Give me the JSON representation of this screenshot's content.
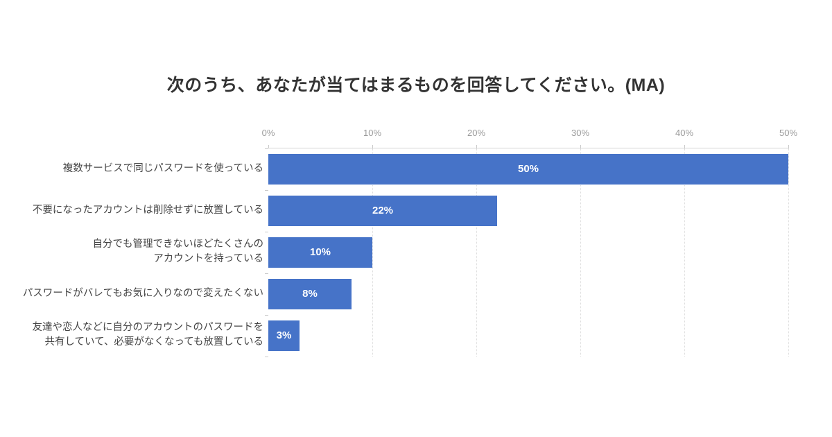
{
  "title": "次のうち、あなたが当てはまるものを回答してください。(MA)",
  "chart_data": {
    "type": "bar",
    "orientation": "horizontal",
    "title": "次のうち、あなたが当てはまるものを回答してください。(MA)",
    "categories": [
      [
        "複数サービスで同じパスワードを使っている"
      ],
      [
        "不要になったアカウントは削除せずに放置している"
      ],
      [
        "自分でも管理できないほどたくさんの",
        "アカウントを持っている"
      ],
      [
        "パスワードがバレてもお気に入りなので変えたくない"
      ],
      [
        "友達や恋人などに自分のアカウントのパスワードを",
        "共有していて、必要がなくなっても放置している"
      ]
    ],
    "values": [
      50,
      22,
      10,
      8,
      3
    ],
    "value_labels": [
      "50%",
      "22%",
      "10%",
      "8%",
      "3%"
    ],
    "x_ticks": [
      "0%",
      "10%",
      "20%",
      "30%",
      "40%",
      "50%"
    ],
    "x_tick_values": [
      0,
      10,
      20,
      30,
      40,
      50
    ],
    "xlim": [
      0,
      50
    ],
    "grid": true,
    "legend": false,
    "bar_color": "#4673c8",
    "value_label_color": "#ffffff",
    "gridline_color": "#dcdcdc",
    "axis_line_color": "#d4d4d4",
    "tick_label_color": "#9a9a9a",
    "category_label_color": "#444444",
    "title_color": "#333333",
    "background_color": "#ffffff"
  }
}
